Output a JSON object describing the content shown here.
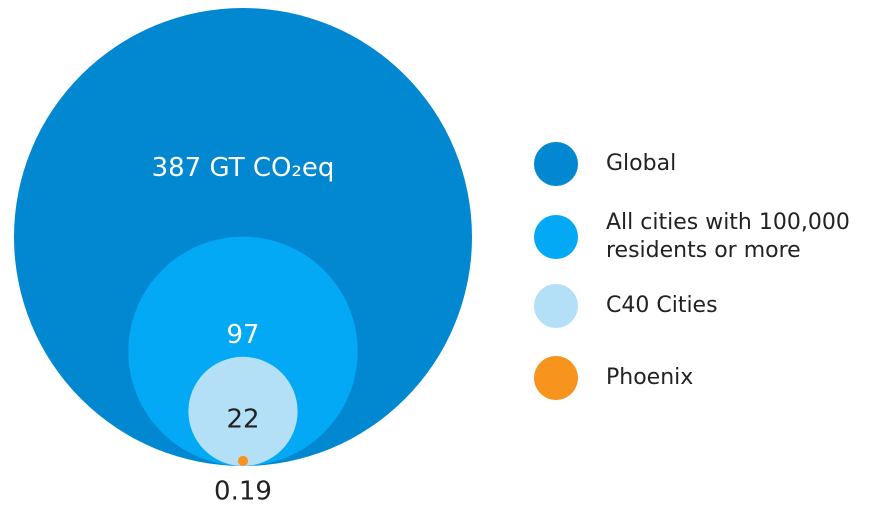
{
  "chart_data": {
    "type": "nested-bubble",
    "categories": [
      "Global",
      "All cities with 100,000 residents or more",
      "C40 Cities",
      "Phoenix"
    ],
    "values": [
      387,
      97,
      22,
      0.19
    ],
    "value_labels": [
      "387 GT CO₂eq",
      "97",
      "22",
      "0.19"
    ],
    "colors": [
      "#0288d1",
      "#03a9f4",
      "#b3e0f7",
      "#f7941d"
    ]
  }
}
